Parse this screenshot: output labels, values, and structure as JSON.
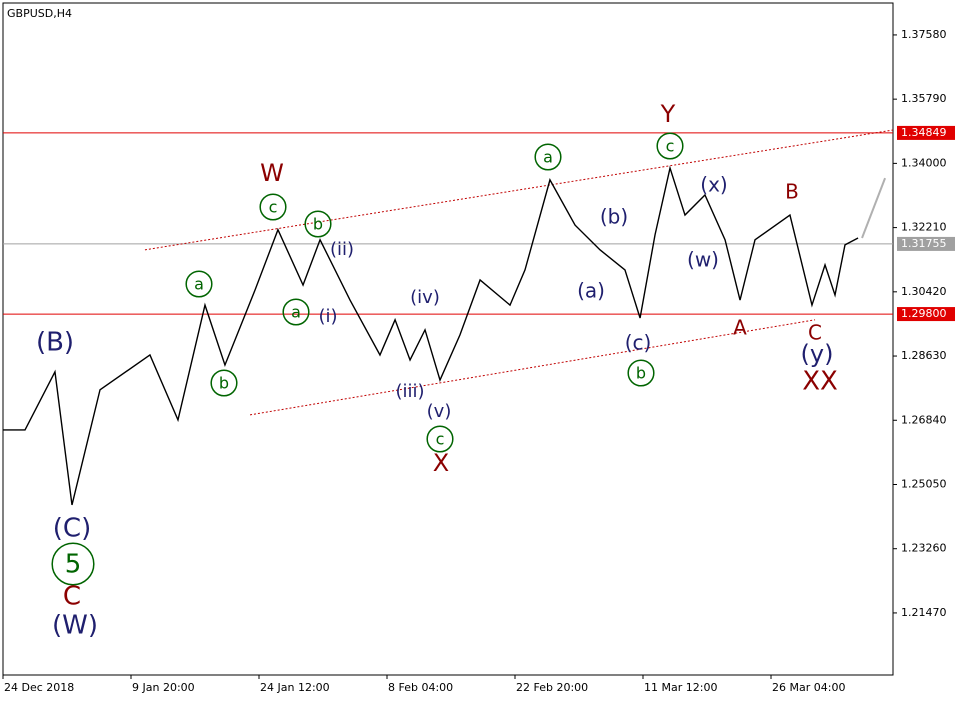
{
  "chart_data": {
    "type": "line",
    "title": "GBPUSD,H4",
    "xlim": [
      0,
      6.953
    ],
    "ylim": [
      1.1974,
      1.3847
    ],
    "xticks": [
      {
        "value": 0,
        "label": "24 Dec 2018"
      },
      {
        "value": 1,
        "label": "9 Jan 20:00"
      },
      {
        "value": 2,
        "label": "24 Jan 12:00"
      },
      {
        "value": 3,
        "label": "8 Feb 04:00"
      },
      {
        "value": 4,
        "label": "22 Feb 20:00"
      },
      {
        "value": 5,
        "label": "11 Mar 12:00"
      },
      {
        "value": 6,
        "label": "26 Mar 04:00"
      }
    ],
    "yticks": [
      {
        "value": 1.3758,
        "label": "1.37580"
      },
      {
        "value": 1.3579,
        "label": "1.35790"
      },
      {
        "value": 1.34,
        "label": "1.34000"
      },
      {
        "value": 1.3221,
        "label": "1.32210"
      },
      {
        "value": 1.3042,
        "label": "1.30420"
      },
      {
        "value": 1.2863,
        "label": "1.28630"
      },
      {
        "value": 1.2684,
        "label": "1.26840"
      },
      {
        "value": 1.2505,
        "label": "1.25050"
      },
      {
        "value": 1.2326,
        "label": "1.23260"
      },
      {
        "value": 1.2147,
        "label": "1.21470"
      }
    ],
    "series": [
      {
        "color": "#000000",
        "x": [
          0,
          0.172,
          0.406,
          0.539,
          0.758,
          1.148,
          1.367,
          1.578,
          1.734,
          1.969,
          2.148,
          2.344,
          2.477,
          2.711,
          2.945,
          3.063,
          3.18,
          3.297,
          3.414,
          3.57,
          3.727,
          3.961,
          4.078,
          4.273,
          4.469,
          4.664,
          4.859,
          4.977,
          5.094,
          5.211,
          5.328,
          5.484,
          5.641,
          5.758,
          5.875,
          6.148,
          6.32,
          6.422,
          6.5,
          6.578,
          6.68
        ],
        "values": [
          1.2657,
          1.2657,
          1.2819,
          1.2448,
          1.2769,
          1.2866,
          1.2685,
          1.3005,
          1.2838,
          1.3047,
          1.3215,
          1.3061,
          1.3187,
          1.3019,
          1.2866,
          1.2964,
          1.2852,
          1.2936,
          1.2796,
          1.2922,
          1.3075,
          1.3005,
          1.3103,
          1.3354,
          1.3228,
          1.3159,
          1.3103,
          1.2969,
          1.3201,
          1.3387,
          1.3256,
          1.3312,
          1.3187,
          1.3019,
          1.3187,
          1.3256,
          1.3005,
          1.3117,
          1.3033,
          1.3173,
          1.3192
        ]
      },
      {
        "color": "#b0b0b0",
        "x": [
          6.711,
          6.891
        ],
        "values": [
          1.3192,
          1.3359
        ]
      }
    ],
    "channel_lines": [
      {
        "color": "#c00000",
        "x": [
          1.109,
          6.953
        ],
        "values": [
          1.3159,
          1.3493
        ]
      },
      {
        "color": "#c00000",
        "x": [
          1.93,
          6.344
        ],
        "values": [
          1.2699,
          1.2964
        ]
      }
    ],
    "price_lines": [
      {
        "value": 1.34849,
        "label": "1.34849",
        "color": "#e00000"
      },
      {
        "value": 1.31755,
        "label": "1.31755",
        "color": "#a0a0a0"
      },
      {
        "value": 1.298,
        "label": "1.29800",
        "color": "#e00000"
      }
    ],
    "annotations": [
      {
        "text": "(B)",
        "color": "#1f1f6e",
        "circled": false
      },
      {
        "text": "(C)",
        "color": "#1f1f6e",
        "circled": false
      },
      {
        "text": "5",
        "color": "#006400",
        "circled": true
      },
      {
        "text": "C",
        "color": "#8b0000",
        "circled": false
      },
      {
        "text": "(W)",
        "color": "#1f1f6e",
        "circled": false
      },
      {
        "text": "a",
        "color": "#006400",
        "circled": true
      },
      {
        "text": "b",
        "color": "#006400",
        "circled": true
      },
      {
        "text": "W",
        "color": "#8b0000",
        "circled": false
      },
      {
        "text": "c",
        "color": "#006400",
        "circled": true
      },
      {
        "text": "b",
        "color": "#006400",
        "circled": true
      },
      {
        "text": "(ii)",
        "color": "#1f1f6e",
        "circled": false
      },
      {
        "text": "a",
        "color": "#006400",
        "circled": true
      },
      {
        "text": "(i)",
        "color": "#1f1f6e",
        "circled": false
      },
      {
        "text": "(iv)",
        "color": "#1f1f6e",
        "circled": false
      },
      {
        "text": "(iii)",
        "color": "#1f1f6e",
        "circled": false
      },
      {
        "text": "(v)",
        "color": "#1f1f6e",
        "circled": false
      },
      {
        "text": "c",
        "color": "#006400",
        "circled": true
      },
      {
        "text": "X",
        "color": "#8b0000",
        "circled": false
      },
      {
        "text": "a",
        "color": "#006400",
        "circled": true
      },
      {
        "text": "(b)",
        "color": "#1f1f6e",
        "circled": false
      },
      {
        "text": "(a)",
        "color": "#1f1f6e",
        "circled": false
      },
      {
        "text": "(c)",
        "color": "#1f1f6e",
        "circled": false
      },
      {
        "text": "b",
        "color": "#006400",
        "circled": true
      },
      {
        "text": "Y",
        "color": "#8b0000",
        "circled": false
      },
      {
        "text": "c",
        "color": "#006400",
        "circled": true
      },
      {
        "text": "(x)",
        "color": "#1f1f6e",
        "circled": false
      },
      {
        "text": "(w)",
        "color": "#1f1f6e",
        "circled": false
      },
      {
        "text": "B",
        "color": "#8b0000",
        "circled": false
      },
      {
        "text": "A",
        "color": "#8b0000",
        "circled": false
      },
      {
        "text": "C",
        "color": "#8b0000",
        "circled": false
      },
      {
        "text": "(y)",
        "color": "#1f1f6e",
        "circled": false
      },
      {
        "text": "XX",
        "color": "#8b0000",
        "circled": false
      }
    ]
  }
}
